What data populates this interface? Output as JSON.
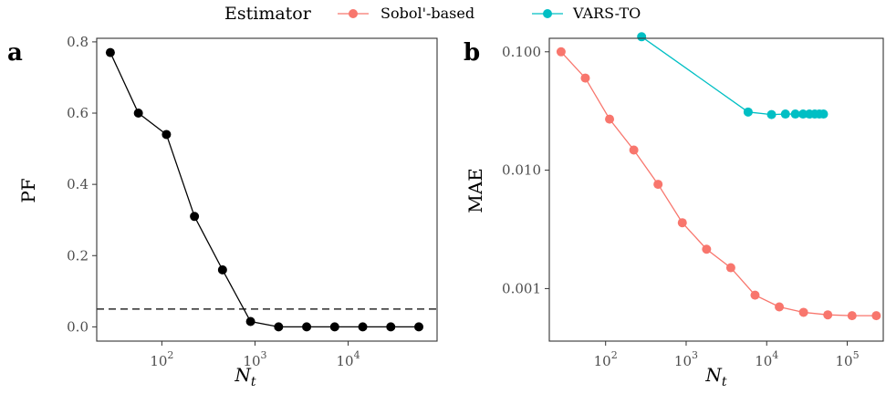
{
  "legend": {
    "title": "Estimator",
    "entries": [
      {
        "name": "Sobol'-based",
        "color": "#F8766D"
      },
      {
        "name": "VARS-TO",
        "color": "#00BFC4"
      }
    ]
  },
  "chart_data": [
    {
      "type": "line",
      "panel_label": "a",
      "xlabel": "N",
      "xlabel_sub": "t",
      "ylabel": "PF",
      "xscale": "log",
      "xlim": [
        20,
        90000
      ],
      "ylim": [
        -0.04,
        0.81
      ],
      "yticks": [
        0.0,
        0.2,
        0.4,
        0.6,
        0.8
      ],
      "ytick_labels": [
        "0.0",
        "0.2",
        "0.4",
        "0.6",
        "0.8"
      ],
      "xticks": [
        100,
        1000,
        10000
      ],
      "xtick_labels": [
        {
          "base": "10",
          "exp": "2"
        },
        {
          "base": "10",
          "exp": "3"
        },
        {
          "base": "10",
          "exp": "4"
        }
      ],
      "grid": false,
      "reference_line": {
        "y": 0.05,
        "style": "dashed"
      },
      "series": [
        {
          "color": "#000000",
          "x": [
            28,
            56,
            112,
            224,
            448,
            896,
            1792,
            3584,
            7168,
            14336,
            28672,
            57344
          ],
          "y": [
            0.77,
            0.6,
            0.54,
            0.31,
            0.16,
            0.015,
            0.0,
            0.0,
            0.0,
            0.0,
            0.0,
            0.0
          ]
        }
      ]
    },
    {
      "type": "line",
      "panel_label": "b",
      "xlabel": "N",
      "xlabel_sub": "t",
      "ylabel": "MAE",
      "xscale": "log",
      "yscale": "log",
      "xlim": [
        20,
        280000
      ],
      "ylim": [
        0.00036,
        0.13
      ],
      "yticks": [
        0.001,
        0.01,
        0.1
      ],
      "ytick_labels": [
        "0.001",
        "0.010",
        "0.100"
      ],
      "xticks": [
        100,
        1000,
        10000,
        100000
      ],
      "xtick_labels": [
        {
          "base": "10",
          "exp": "2"
        },
        {
          "base": "10",
          "exp": "3"
        },
        {
          "base": "10",
          "exp": "4"
        },
        {
          "base": "10",
          "exp": "5"
        }
      ],
      "grid": false,
      "series": [
        {
          "name": "Sobol'-based",
          "color": "#F8766D",
          "x": [
            28,
            56,
            112,
            224,
            448,
            896,
            1792,
            3584,
            7168,
            14336,
            28672,
            57344,
            114688,
            229376
          ],
          "y": [
            0.1,
            0.06,
            0.027,
            0.0148,
            0.0076,
            0.0036,
            0.00215,
            0.0015,
            0.00088,
            0.0007,
            0.00063,
            0.0006,
            0.00059,
            0.00059
          ]
        },
        {
          "name": "VARS-TO",
          "color": "#00BFC4",
          "x": [
            280,
            5880,
            11480,
            17080,
            22680,
            28280,
            33880,
            39480,
            45080,
            50680
          ],
          "y": [
            0.134,
            0.031,
            0.0295,
            0.0298,
            0.0298,
            0.0298,
            0.0298,
            0.0298,
            0.0298,
            0.0298
          ]
        }
      ]
    }
  ]
}
